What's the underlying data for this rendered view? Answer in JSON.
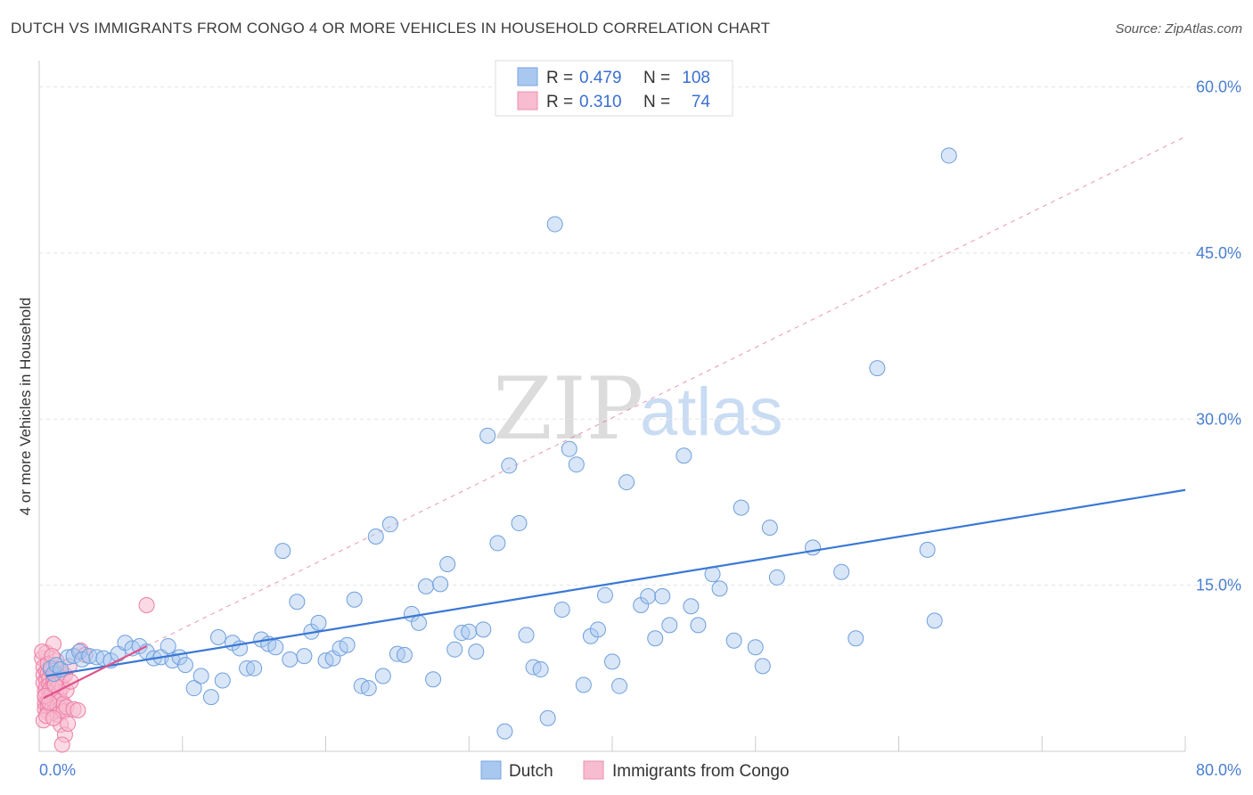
{
  "header": {
    "title": "DUTCH VS IMMIGRANTS FROM CONGO 4 OR MORE VEHICLES IN HOUSEHOLD CORRELATION CHART",
    "source": "Source: ZipAtlas.com"
  },
  "watermark": {
    "zip": "ZIP",
    "atlas": "atlas"
  },
  "legend": {
    "rows": [
      {
        "r_label": "R =",
        "r_value": "0.479",
        "n_label": "N =",
        "n_value": "108",
        "color": "#a9c8f0",
        "border": "#7aa6e0"
      },
      {
        "r_label": "R =",
        "r_value": "0.310",
        "n_label": "N =",
        "n_value": "74",
        "color": "#f7bcd0",
        "border": "#ec8fb0"
      }
    ]
  },
  "bottom_legend": {
    "series1": "Dutch",
    "series2": "Immigrants from Congo"
  },
  "chart_data": {
    "type": "scatter",
    "title": "DUTCH VS IMMIGRANTS FROM CONGO 4 OR MORE VEHICLES IN HOUSEHOLD CORRELATION CHART",
    "xlabel": "",
    "ylabel": "4 or more Vehicles in Household",
    "xlim": [
      0,
      80
    ],
    "ylim": [
      0,
      62
    ],
    "x_tick_labels": [
      "0.0%",
      "80.0%"
    ],
    "y_ticks": [
      15,
      30,
      45,
      60
    ],
    "y_tick_labels": [
      "15.0%",
      "30.0%",
      "45.0%",
      "60.0%"
    ],
    "grid": true,
    "legend_position": "top-center",
    "colors": {
      "dutch_fill": "#a9c8f0",
      "dutch_stroke": "#6f9fdc",
      "dutch_line": "#3a78d4",
      "congo_fill": "#f7bcd0",
      "congo_stroke": "#ec7ea6",
      "congo_line": "#e0528a"
    },
    "series": [
      {
        "name": "Dutch",
        "R": 0.479,
        "N": 108,
        "trend": {
          "x0": 0.5,
          "y0": 6.8,
          "x1": 80,
          "y1": 23.6
        },
        "points": [
          [
            0.8,
            7.5
          ],
          [
            1.0,
            7.0
          ],
          [
            1.2,
            7.8
          ],
          [
            1.5,
            7.4
          ],
          [
            2.0,
            8.5
          ],
          [
            2.4,
            8.6
          ],
          [
            2.8,
            9.0
          ],
          [
            3.0,
            8.3
          ],
          [
            3.5,
            8.6
          ],
          [
            4.0,
            8.5
          ],
          [
            4.5,
            8.4
          ],
          [
            5.0,
            8.2
          ],
          [
            5.5,
            8.8
          ],
          [
            6.0,
            9.8
          ],
          [
            6.5,
            9.3
          ],
          [
            7.0,
            9.5
          ],
          [
            7.5,
            9.0
          ],
          [
            8.0,
            8.4
          ],
          [
            8.5,
            8.5
          ],
          [
            9.0,
            9.5
          ],
          [
            9.3,
            8.2
          ],
          [
            9.8,
            8.5
          ],
          [
            10.2,
            7.8
          ],
          [
            10.8,
            5.7
          ],
          [
            11.3,
            6.8
          ],
          [
            12.0,
            4.9
          ],
          [
            12.5,
            10.3
          ],
          [
            12.8,
            6.4
          ],
          [
            13.5,
            9.8
          ],
          [
            14.0,
            9.3
          ],
          [
            14.5,
            7.5
          ],
          [
            15.0,
            7.5
          ],
          [
            15.5,
            10.1
          ],
          [
            16.0,
            9.7
          ],
          [
            16.5,
            9.4
          ],
          [
            17.0,
            18.1
          ],
          [
            17.5,
            8.3
          ],
          [
            18.0,
            13.5
          ],
          [
            18.5,
            8.6
          ],
          [
            19.0,
            10.8
          ],
          [
            19.5,
            11.6
          ],
          [
            20.0,
            8.2
          ],
          [
            20.5,
            8.4
          ],
          [
            21.0,
            9.3
          ],
          [
            21.5,
            9.6
          ],
          [
            22.0,
            13.7
          ],
          [
            22.5,
            5.9
          ],
          [
            23.0,
            5.7
          ],
          [
            23.5,
            19.4
          ],
          [
            24.0,
            6.8
          ],
          [
            24.5,
            20.5
          ],
          [
            25.0,
            8.8
          ],
          [
            25.5,
            8.7
          ],
          [
            26.0,
            12.4
          ],
          [
            26.5,
            11.6
          ],
          [
            27.0,
            14.9
          ],
          [
            27.5,
            6.5
          ],
          [
            28.0,
            15.1
          ],
          [
            28.5,
            16.9
          ],
          [
            29.0,
            9.2
          ],
          [
            29.5,
            10.7
          ],
          [
            30.0,
            10.8
          ],
          [
            30.5,
            9.0
          ],
          [
            31.0,
            11.0
          ],
          [
            31.3,
            28.5
          ],
          [
            32.0,
            18.8
          ],
          [
            32.5,
            1.8
          ],
          [
            32.8,
            25.8
          ],
          [
            33.5,
            20.6
          ],
          [
            34.0,
            10.5
          ],
          [
            34.5,
            7.6
          ],
          [
            35.0,
            7.4
          ],
          [
            35.5,
            3.0
          ],
          [
            36.0,
            47.6
          ],
          [
            36.5,
            12.8
          ],
          [
            37.0,
            27.3
          ],
          [
            37.5,
            25.9
          ],
          [
            38.0,
            6.0
          ],
          [
            38.5,
            10.4
          ],
          [
            39.0,
            11.0
          ],
          [
            39.5,
            14.1
          ],
          [
            40.0,
            8.1
          ],
          [
            40.5,
            5.9
          ],
          [
            41.0,
            24.3
          ],
          [
            42.0,
            13.2
          ],
          [
            42.5,
            14.0
          ],
          [
            43.0,
            10.2
          ],
          [
            43.5,
            14.0
          ],
          [
            44.0,
            11.4
          ],
          [
            45.0,
            26.7
          ],
          [
            45.5,
            13.1
          ],
          [
            46.0,
            11.4
          ],
          [
            47.0,
            16.0
          ],
          [
            47.5,
            14.7
          ],
          [
            48.5,
            10.0
          ],
          [
            49.0,
            22.0
          ],
          [
            50.0,
            9.4
          ],
          [
            50.5,
            7.7
          ],
          [
            51.0,
            20.2
          ],
          [
            51.5,
            15.7
          ],
          [
            54.0,
            18.4
          ],
          [
            56.0,
            16.2
          ],
          [
            57.0,
            10.2
          ],
          [
            58.5,
            34.6
          ],
          [
            62.0,
            18.2
          ],
          [
            62.5,
            11.8
          ],
          [
            63.5,
            53.8
          ]
        ]
      },
      {
        "name": "Immigrants from Congo",
        "R": 0.31,
        "N": 74,
        "trend": {
          "x0": 0.3,
          "y0": 4.8,
          "x1": 7.5,
          "y1": 9.5
        },
        "trend_extended": {
          "x0": 7.5,
          "y0": 9.5,
          "x1": 80,
          "y1": 55.5
        },
        "points": [
          [
            0.2,
            8.4
          ],
          [
            0.3,
            7.6
          ],
          [
            0.3,
            6.9
          ],
          [
            0.3,
            6.2
          ],
          [
            0.4,
            5.5
          ],
          [
            0.4,
            4.9
          ],
          [
            0.4,
            4.3
          ],
          [
            0.4,
            3.8
          ],
          [
            0.5,
            8.9
          ],
          [
            0.5,
            7.2
          ],
          [
            0.5,
            6.4
          ],
          [
            0.5,
            5.8
          ],
          [
            0.5,
            5.1
          ],
          [
            0.6,
            4.6
          ],
          [
            0.6,
            4.0
          ],
          [
            0.6,
            3.5
          ],
          [
            0.6,
            7.0
          ],
          [
            0.7,
            6.6
          ],
          [
            0.7,
            6.0
          ],
          [
            0.7,
            5.4
          ],
          [
            0.7,
            4.8
          ],
          [
            0.8,
            4.2
          ],
          [
            0.8,
            7.8
          ],
          [
            0.8,
            7.3
          ],
          [
            0.8,
            5.7
          ],
          [
            0.9,
            5.2
          ],
          [
            0.9,
            4.5
          ],
          [
            0.9,
            3.9
          ],
          [
            1.0,
            9.7
          ],
          [
            1.0,
            6.8
          ],
          [
            1.0,
            6.3
          ],
          [
            1.0,
            5.9
          ],
          [
            1.1,
            5.0
          ],
          [
            1.1,
            4.4
          ],
          [
            1.1,
            3.7
          ],
          [
            1.2,
            7.1
          ],
          [
            1.2,
            6.5
          ],
          [
            1.2,
            5.6
          ],
          [
            1.3,
            4.7
          ],
          [
            1.3,
            4.1
          ],
          [
            1.3,
            3.3
          ],
          [
            1.4,
            7.4
          ],
          [
            1.4,
            6.1
          ],
          [
            1.4,
            5.3
          ],
          [
            1.5,
            4.6
          ],
          [
            1.5,
            3.9
          ],
          [
            1.5,
            2.4
          ],
          [
            1.6,
            6.7
          ],
          [
            1.6,
            5.8
          ],
          [
            1.7,
            4.3
          ],
          [
            1.7,
            3.6
          ],
          [
            1.8,
            1.5
          ],
          [
            1.8,
            6.9
          ],
          [
            1.9,
            5.5
          ],
          [
            1.9,
            4.0
          ],
          [
            2.0,
            2.5
          ],
          [
            2.1,
            7.7
          ],
          [
            2.2,
            6.3
          ],
          [
            2.4,
            3.8
          ],
          [
            0.3,
            2.8
          ],
          [
            0.5,
            3.2
          ],
          [
            1.0,
            3.0
          ],
          [
            1.6,
            0.6
          ],
          [
            2.7,
            3.7
          ],
          [
            2.9,
            9.1
          ],
          [
            3.2,
            8.7
          ],
          [
            0.2,
            9.0
          ],
          [
            0.6,
            7.9
          ],
          [
            1.2,
            8.2
          ],
          [
            0.9,
            8.6
          ],
          [
            7.5,
            13.2
          ],
          [
            0.4,
            5.0
          ],
          [
            0.7,
            4.4
          ],
          [
            1.1,
            6.0
          ]
        ]
      }
    ]
  }
}
